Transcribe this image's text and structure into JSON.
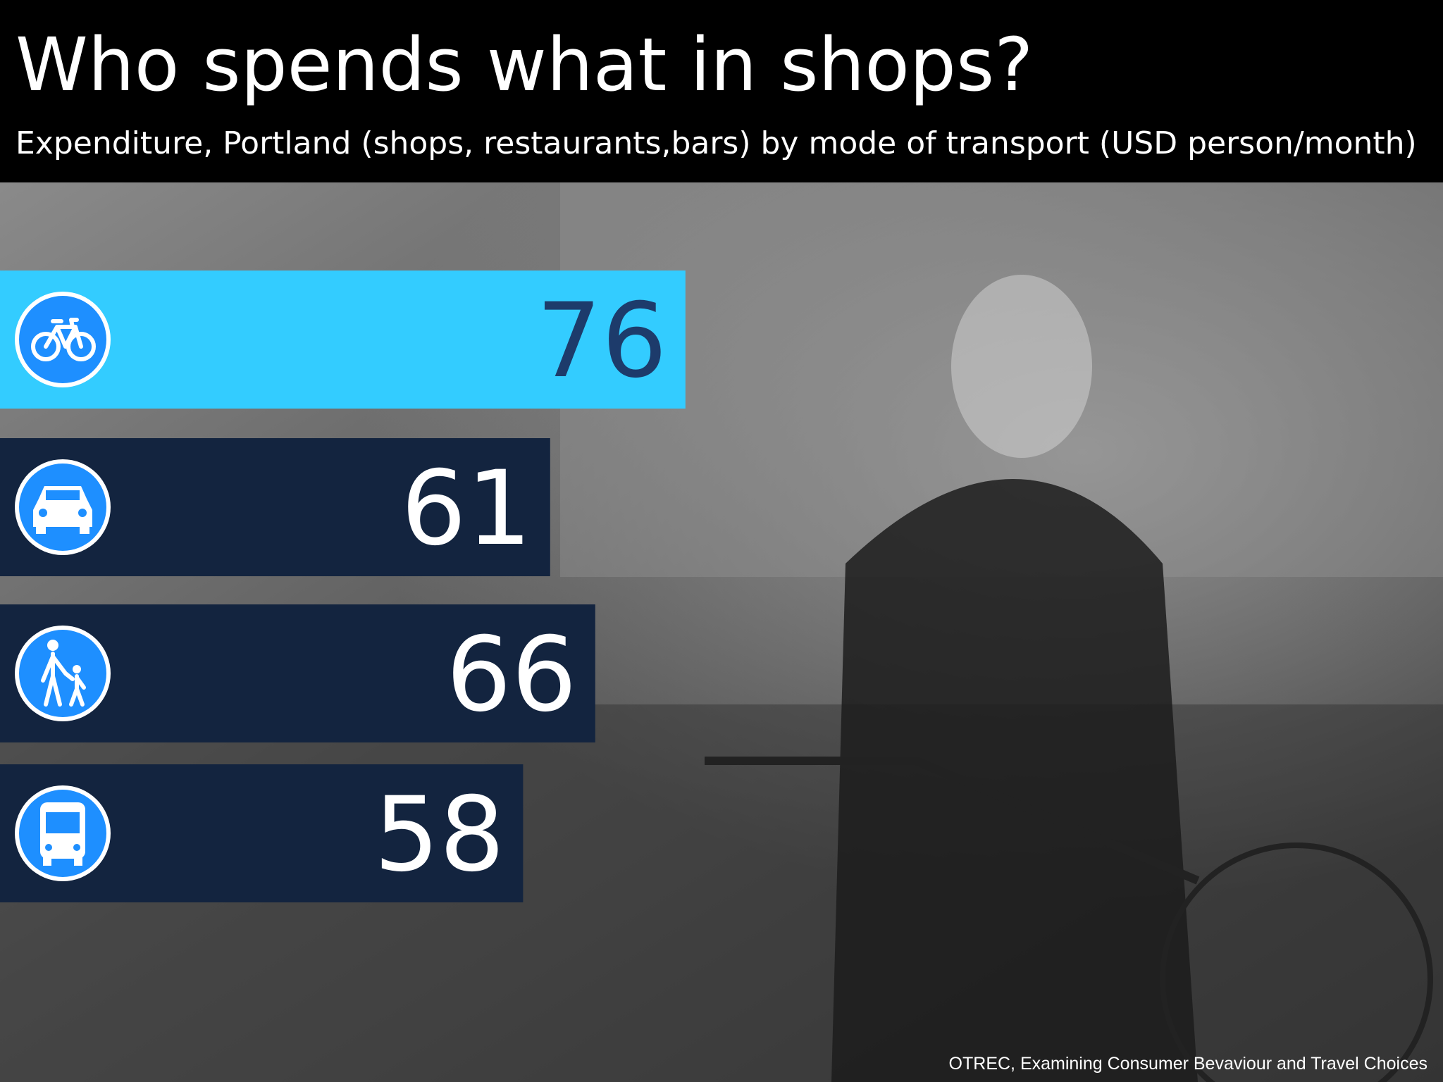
{
  "chart_data": {
    "type": "bar",
    "orientation": "horizontal",
    "title": "Who spends what in shops?",
    "subtitle": "Expenditure, Portland (shops, restaurants,bars) by mode of transport (USD person/month)",
    "categories": [
      null,
      null,
      null,
      null
    ],
    "values": [
      76,
      61,
      66,
      58
    ],
    "colors": [
      "#33ccff",
      "#13243f",
      "#13243f",
      "#13243f"
    ],
    "source": "OTREC, Examining Consumer Bevaviour and Travel Choices"
  }
}
